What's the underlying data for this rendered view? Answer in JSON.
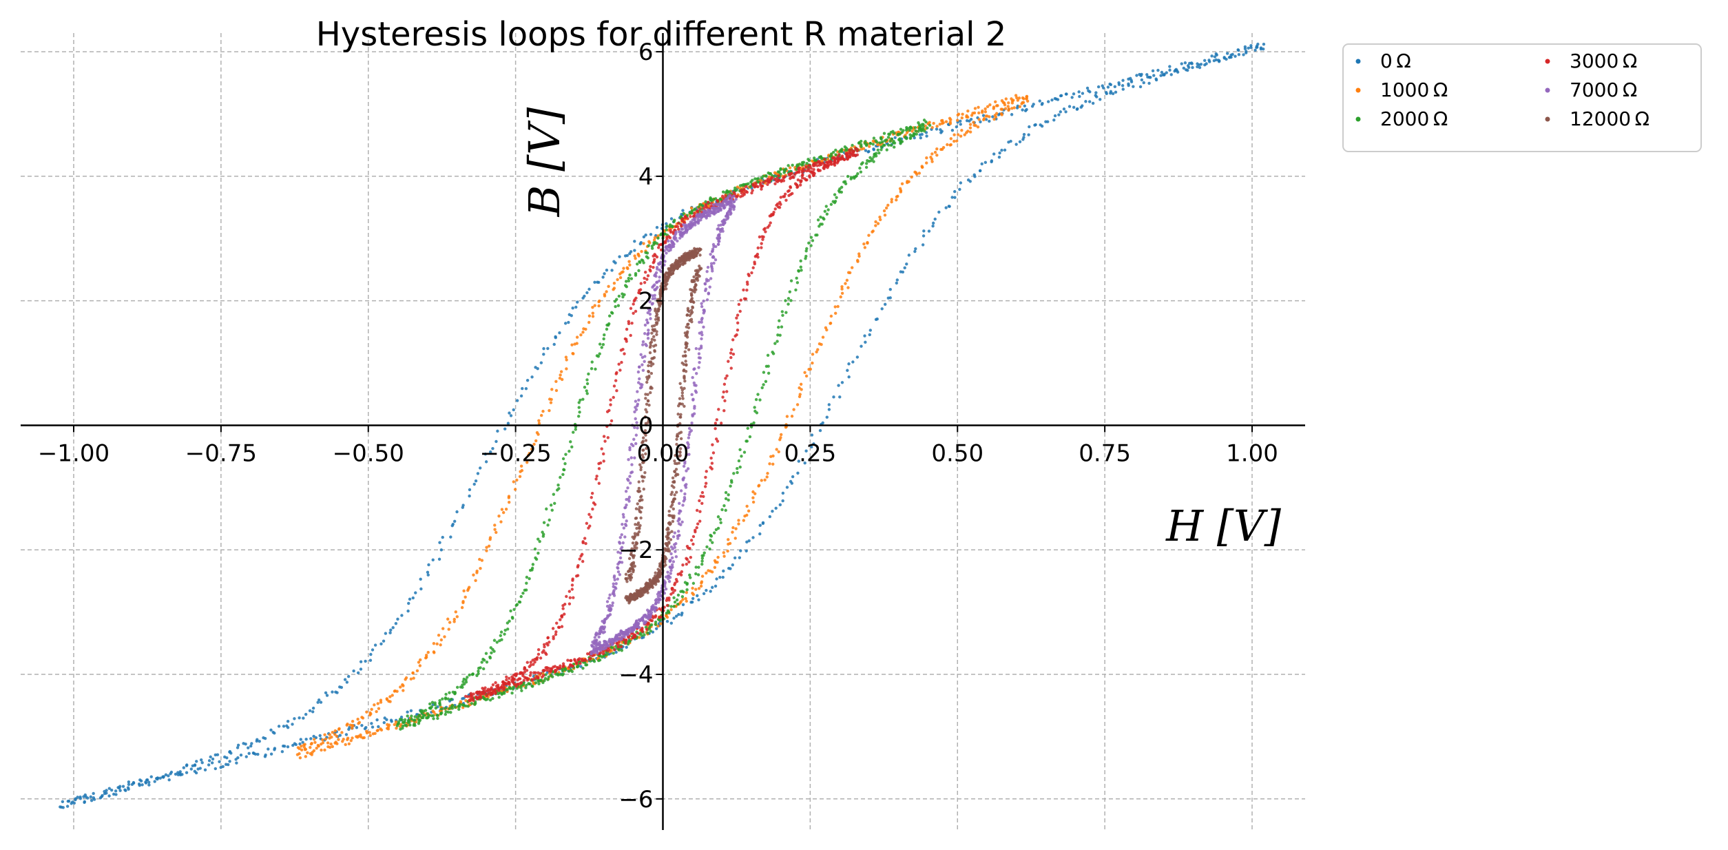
{
  "chart_data": {
    "type": "scatter",
    "title": "Hysteresis loops for different R material 2",
    "xlabel": "H [V]",
    "ylabel": "B [V]",
    "xlim": [
      -1.09,
      1.09
    ],
    "ylim": [
      -6.5,
      6.3
    ],
    "xticks": [
      -1.0,
      -0.75,
      -0.5,
      -0.25,
      0.0,
      0.25,
      0.5,
      0.75,
      1.0
    ],
    "xtick_labels": [
      "−1.00",
      "−0.75",
      "−0.50",
      "−0.25",
      "0.00",
      "0.25",
      "0.50",
      "0.75",
      "1.00"
    ],
    "yticks": [
      -6,
      -4,
      -2,
      0,
      2,
      4,
      6
    ],
    "ytick_labels": [
      "−6",
      "−4",
      "−2",
      "0",
      "2",
      "4",
      "6"
    ],
    "grid": true,
    "legend_position": "outside-top-right",
    "legend_columns": 2,
    "series": [
      {
        "name": "0 Ω",
        "color": "#1f77b4",
        "loop": {
          "hmax": 1.02,
          "bmax": 6.1,
          "hc": 0.31,
          "br": 3.6,
          "k": 18
        }
      },
      {
        "name": "1000 Ω",
        "color": "#ff7f0e",
        "loop": {
          "hmax": 0.62,
          "bmax": 5.3,
          "hc": 0.24,
          "br": 3.5,
          "k": 25
        }
      },
      {
        "name": "2000 Ω",
        "color": "#2ca02c",
        "loop": {
          "hmax": 0.45,
          "bmax": 4.85,
          "hc": 0.165,
          "br": 3.45,
          "k": 28
        }
      },
      {
        "name": "3000 Ω",
        "color": "#d62728",
        "loop": {
          "hmax": 0.33,
          "bmax": 4.4,
          "hc": 0.1,
          "br": 3.3,
          "k": 32
        }
      },
      {
        "name": "7000 Ω",
        "color": "#9467bd",
        "loop": {
          "hmax": 0.12,
          "bmax": 3.65,
          "hc": 0.05,
          "br": 3.0,
          "k": 45
        }
      },
      {
        "name": "12000 Ω",
        "color": "#8c564b",
        "loop": {
          "hmax": 0.06,
          "bmax": 2.8,
          "hc": 0.03,
          "br": 2.5,
          "k": 60
        }
      }
    ]
  }
}
